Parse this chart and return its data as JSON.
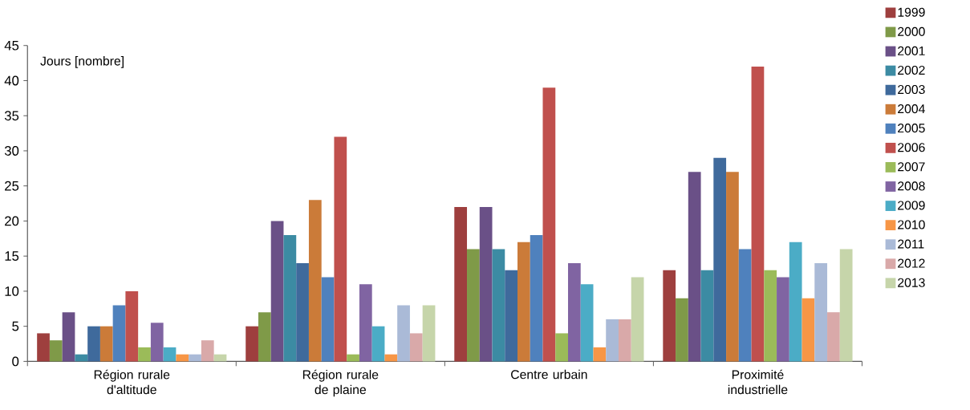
{
  "chart_data": {
    "type": "bar",
    "ylabel": "Jours   [nombre]",
    "categories": [
      "Région rurale d'altitude",
      "Région rurale de plaine",
      "Centre urbain",
      "Proximité industrielle"
    ],
    "series": [
      {
        "name": "1999",
        "color": "#9e3f3e",
        "values": [
          4,
          5,
          22,
          13
        ]
      },
      {
        "name": "2000",
        "color": "#7f9a48",
        "values": [
          3,
          7,
          16,
          9
        ]
      },
      {
        "name": "2001",
        "color": "#6a5087",
        "values": [
          7,
          20,
          22,
          27
        ]
      },
      {
        "name": "2002",
        "color": "#3c8ba3",
        "values": [
          1,
          18,
          16,
          13
        ]
      },
      {
        "name": "2003",
        "color": "#3f6a9c",
        "values": [
          5,
          14,
          13,
          29
        ]
      },
      {
        "name": "2004",
        "color": "#cb7b39",
        "values": [
          5,
          23,
          17,
          27
        ]
      },
      {
        "name": "2005",
        "color": "#4f81bd",
        "values": [
          8,
          12,
          18,
          16
        ]
      },
      {
        "name": "2006",
        "color": "#c0504d",
        "values": [
          10,
          32,
          39,
          42
        ]
      },
      {
        "name": "2007",
        "color": "#9bbb59",
        "values": [
          2,
          1,
          4,
          13
        ]
      },
      {
        "name": "2008",
        "color": "#8064a2",
        "values": [
          5.5,
          11,
          14,
          12
        ]
      },
      {
        "name": "2009",
        "color": "#4bacc6",
        "values": [
          2,
          5,
          11,
          17
        ]
      },
      {
        "name": "2010",
        "color": "#f79646",
        "values": [
          1,
          1,
          2,
          9
        ]
      },
      {
        "name": "2011",
        "color": "#aabad7",
        "values": [
          1,
          8,
          6,
          14
        ]
      },
      {
        "name": "2012",
        "color": "#d9a9a9",
        "values": [
          3,
          4,
          6,
          7
        ]
      },
      {
        "name": "2013",
        "color": "#c6d5aa",
        "values": [
          1,
          8,
          12,
          16
        ]
      }
    ],
    "ylim": [
      0,
      45
    ],
    "yticks": [
      0,
      5,
      10,
      15,
      20,
      25,
      30,
      35,
      40,
      45
    ],
    "grid": false,
    "legend": "right"
  }
}
